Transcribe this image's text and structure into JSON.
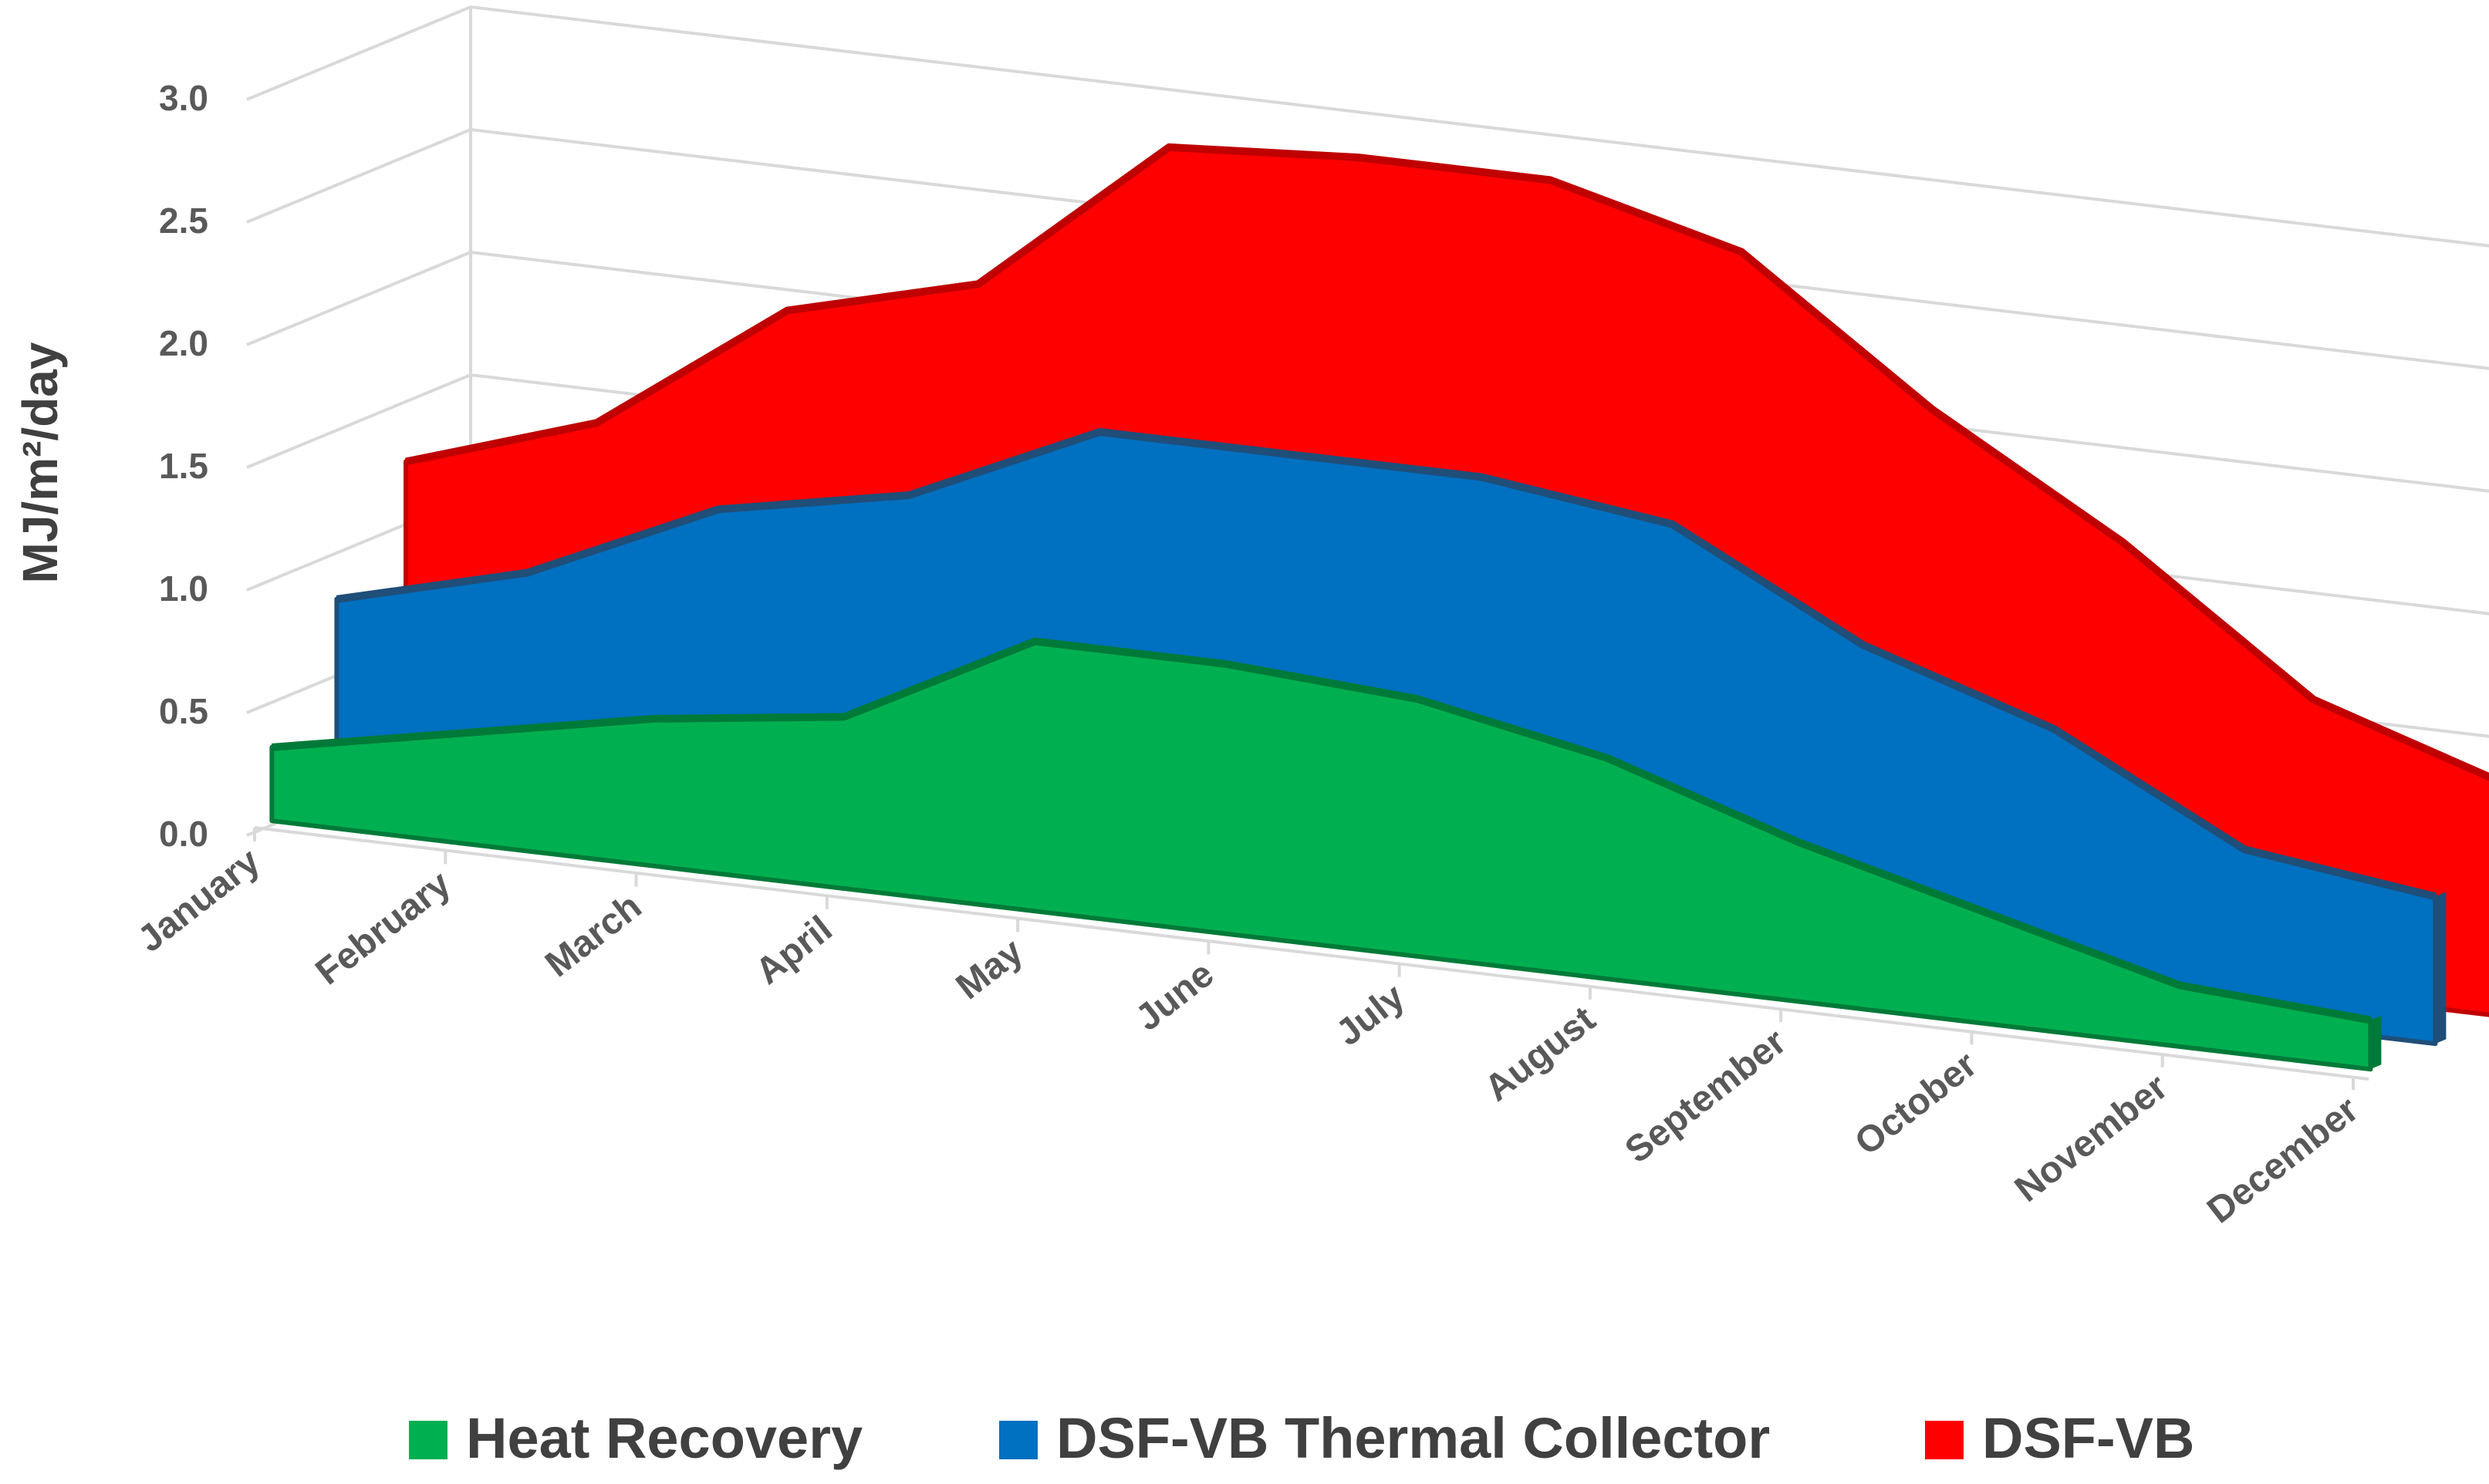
{
  "chart_data": {
    "type": "area",
    "variant": "3d-area",
    "title": "",
    "xlabel": "",
    "ylabel": "MJ/m²/day",
    "ylim": [
      0,
      3.0
    ],
    "yticks": [
      "0.0",
      "0.5",
      "1.0",
      "1.5",
      "2.0",
      "2.5",
      "3.0"
    ],
    "categories": [
      "January",
      "February",
      "March",
      "April",
      "May",
      "June",
      "July",
      "August",
      "September",
      "October",
      "November",
      "December"
    ],
    "legend_position": "bottom",
    "series": [
      {
        "name": "DSF-VB",
        "color": "#ff0000",
        "values": [
          1.25,
          1.5,
          2.05,
          2.25,
          2.9,
          2.95,
          2.95,
          2.75,
          2.2,
          1.75,
          1.2,
          0.95
        ]
      },
      {
        "name": "DSF-VB Thermal Collector",
        "color": "#0070c0",
        "values": [
          0.8,
          1.0,
          1.35,
          1.5,
          1.85,
          1.85,
          1.85,
          1.75,
          1.35,
          1.1,
          0.7,
          0.6
        ]
      },
      {
        "name": "Heat Recovery",
        "color": "#00b050",
        "values": [
          0.3,
          0.45,
          0.6,
          0.7,
          1.1,
          1.1,
          1.05,
          0.9,
          0.65,
          0.45,
          0.25,
          0.2
        ]
      }
    ],
    "legend_order": [
      "Heat Recovery",
      "DSF-VB Thermal Collector",
      "DSF-VB"
    ]
  }
}
